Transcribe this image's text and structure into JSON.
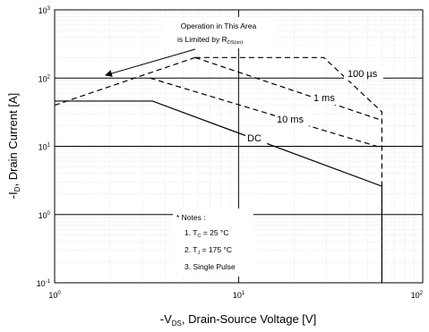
{
  "chart_data": {
    "type": "line",
    "title": "",
    "x_scale": "log",
    "y_scale": "log",
    "xlim": [
      1,
      100
    ],
    "ylim": [
      0.1,
      1000
    ],
    "grid": true,
    "xlabel": {
      "pre": "-V",
      "sub": "DS",
      "post": ", Drain-Source Voltage [V]"
    },
    "ylabel": {
      "pre": "-I",
      "sub": "D",
      "post": ", Drain Current [A]"
    },
    "x_ticks": [
      {
        "value": 1,
        "base": "10",
        "exp": "0"
      },
      {
        "value": 10,
        "base": "10",
        "exp": "1"
      },
      {
        "value": 100,
        "base": "10",
        "exp": "2"
      }
    ],
    "y_ticks": [
      {
        "value": 0.1,
        "base": "10",
        "exp": "-1"
      },
      {
        "value": 1,
        "base": "10",
        "exp": "0"
      },
      {
        "value": 10,
        "base": "10",
        "exp": "1"
      },
      {
        "value": 100,
        "base": "10",
        "exp": "2"
      },
      {
        "value": 1000,
        "base": "10",
        "exp": "3"
      }
    ],
    "series": [
      {
        "name": "Limited by R_DS(on)",
        "style": "dash",
        "x": [
          1,
          5.8
        ],
        "y": [
          40,
          200
        ]
      },
      {
        "name": "100 µs",
        "style": "dash",
        "x": [
          5.8,
          29,
          60,
          60
        ],
        "y": [
          200,
          200,
          32,
          0.1
        ]
      },
      {
        "name": "1 ms",
        "style": "dash",
        "x": [
          5.8,
          60
        ],
        "y": [
          200,
          24
        ]
      },
      {
        "name": "10 ms",
        "style": "dash",
        "x": [
          3.3,
          60
        ],
        "y": [
          100,
          9.5
        ]
      },
      {
        "name": "DC",
        "style": "solid",
        "x": [
          1,
          3.4,
          60,
          60
        ],
        "y": [
          46,
          46,
          2.6,
          0.1
        ]
      }
    ],
    "annotations": {
      "area_text_line1": "Operation in This Area",
      "area_text_line2_pre": "is Limited by R",
      "area_text_line2_sub": "DS(on)",
      "label_100us": "100 µs",
      "label_1ms": "1 ms",
      "label_10ms": "10 ms",
      "label_dc": "DC"
    },
    "notes": {
      "title": "* Notes :",
      "n1_pre": "1. T",
      "n1_sub": "C",
      "n1_post": " = 25 °C",
      "n2_pre": "2. T",
      "n2_sub": "J",
      "n2_post": " = 175 °C",
      "n3": "3. Single Pulse"
    }
  }
}
